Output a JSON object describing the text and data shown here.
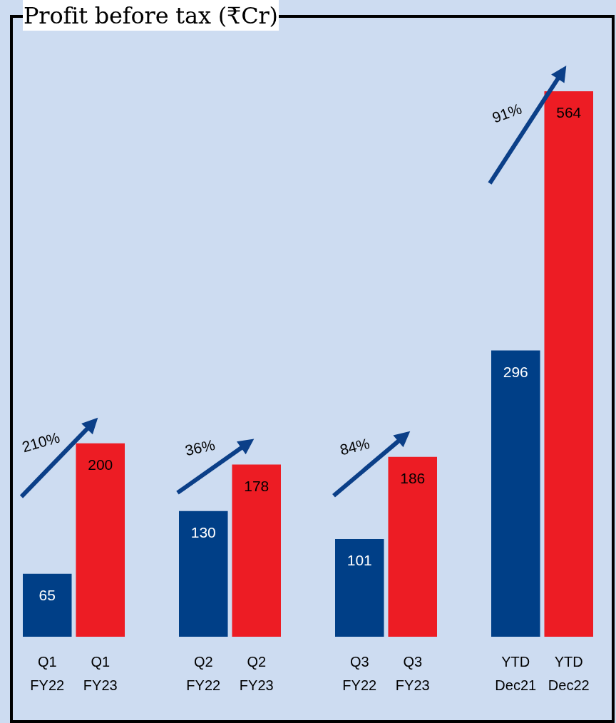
{
  "chart_data": {
    "type": "bar",
    "title": "Profit before tax (₹Cr)",
    "categories": [
      "Q1 FY22",
      "Q1 FY23",
      "Q2 FY22",
      "Q2 FY23",
      "Q3 FY22",
      "Q3 FY23",
      "YTD Dec21",
      "YTD Dec22"
    ],
    "values": [
      65,
      200,
      130,
      178,
      101,
      186,
      296,
      564
    ],
    "colors": [
      "#003f87",
      "#ed1c24",
      "#003f87",
      "#ed1c24",
      "#003f87",
      "#ed1c24",
      "#003f87",
      "#ed1c24"
    ],
    "data_labels": true,
    "annotations": [
      "210%",
      "36%",
      "84%",
      "91%"
    ]
  }
}
